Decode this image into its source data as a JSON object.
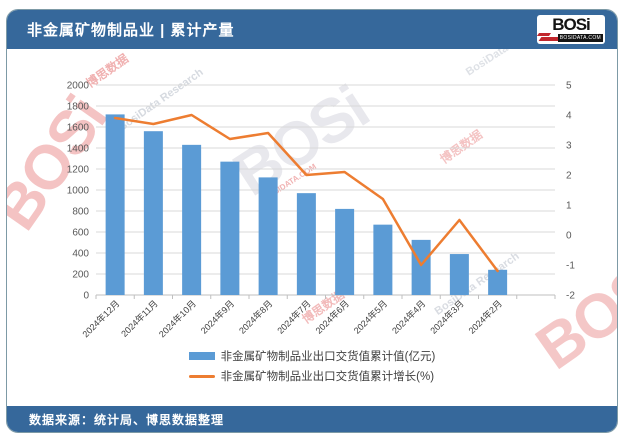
{
  "header": {
    "title": "非金属矿物制品业 | 累计产量",
    "logo_text": "BOSi",
    "logo_domain": "BOSIDATA.COM"
  },
  "footer": {
    "source": "数据来源：统计局、博思数据整理"
  },
  "watermark": {
    "brand": "BOSi",
    "cn": "博思数据",
    "en": "BosiData Research",
    "domain": "BOSIDATA.COM"
  },
  "colors": {
    "header_bg": "#36689b",
    "bar": "#5b9bd5",
    "line": "#ed7d31",
    "grid": "#d9d9d9",
    "axis_text": "#595959"
  },
  "chart_data": {
    "type": "bar",
    "title": "非金属矿物制品业 | 累计产量",
    "categories": [
      "2024年12月",
      "2024年11月",
      "2024年10月",
      "2024年9月",
      "2024年8月",
      "2024年7月",
      "2024年6月",
      "2024年5月",
      "2024年4月",
      "2024年3月",
      "2024年2月"
    ],
    "series": [
      {
        "name": "非金属矿物制品业出口交货值累计值(亿元)",
        "type": "bar",
        "axis": "left",
        "color": "#5b9bd5",
        "values": [
          1720,
          1560,
          1430,
          1270,
          1120,
          970,
          820,
          670,
          525,
          390,
          240
        ]
      },
      {
        "name": "非金属矿物制品业出口交货值累计增长(%)",
        "type": "line",
        "axis": "right",
        "color": "#ed7d31",
        "values": [
          3.9,
          3.7,
          4.0,
          3.2,
          3.4,
          2.0,
          2.1,
          1.2,
          -1.0,
          0.5,
          -1.2
        ]
      }
    ],
    "left_axis": {
      "min": 0,
      "max": 2000,
      "step": 200
    },
    "right_axis": {
      "min": -2,
      "max": 5,
      "step": 1
    },
    "grid": true,
    "legend_position": "bottom"
  }
}
